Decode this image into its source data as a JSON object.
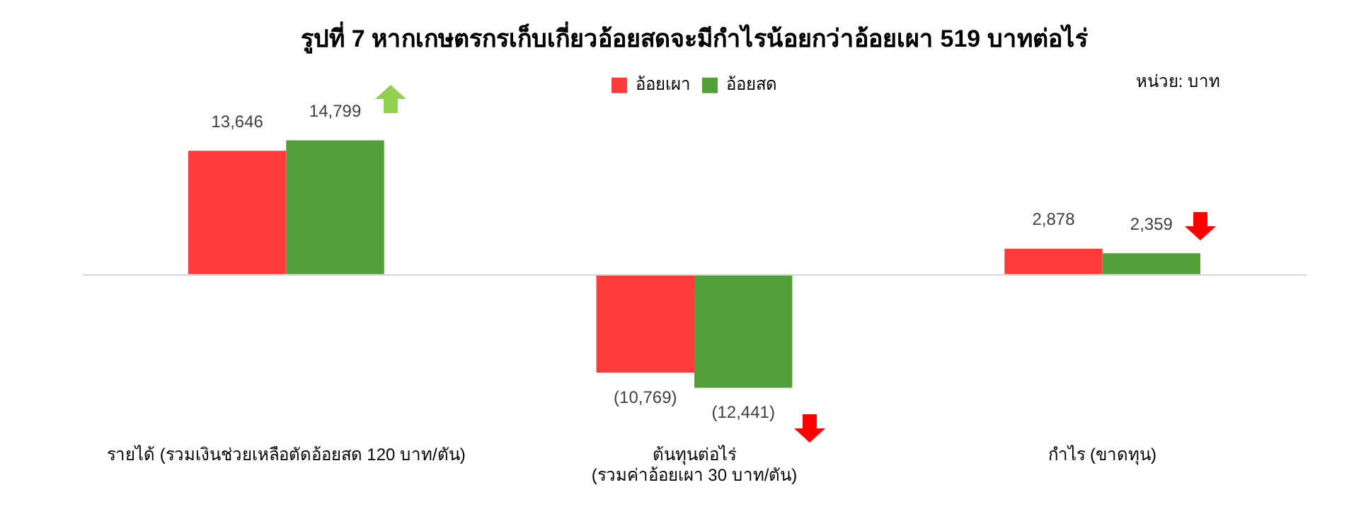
{
  "chart_data": {
    "type": "bar",
    "title": "รูปที่ 7 หากเกษตรกรเก็บเกี่ยวอ้อยสดจะมีกำไรน้อยกว่าอ้อยเผา 519 บาทต่อไร่",
    "annotations": [
      "หน่วย: บาท"
    ],
    "categories": [
      "รายได้ (รวมเงินช่วยเหลือตัดอ้อยสด 120 บาท/ตัน)",
      "ต้นทุนต่อไร่\n(รวมค่าอ้อยเผา 30 บาท/ตัน)",
      "กำไร (ขาดทุน)"
    ],
    "series": [
      {
        "name": "อ้อยเผา",
        "color": "#ff3b3b",
        "values": [
          13646,
          -10769,
          2878
        ],
        "value_labels": [
          "13,646",
          "(10,769)",
          "2,878"
        ]
      },
      {
        "name": "อ้อยสด",
        "color": "#529e38",
        "values": [
          14799,
          -12441,
          2359
        ],
        "value_labels": [
          "14,799",
          "(12,441)",
          "2,359"
        ]
      }
    ],
    "legend": "top",
    "grid": false
  }
}
